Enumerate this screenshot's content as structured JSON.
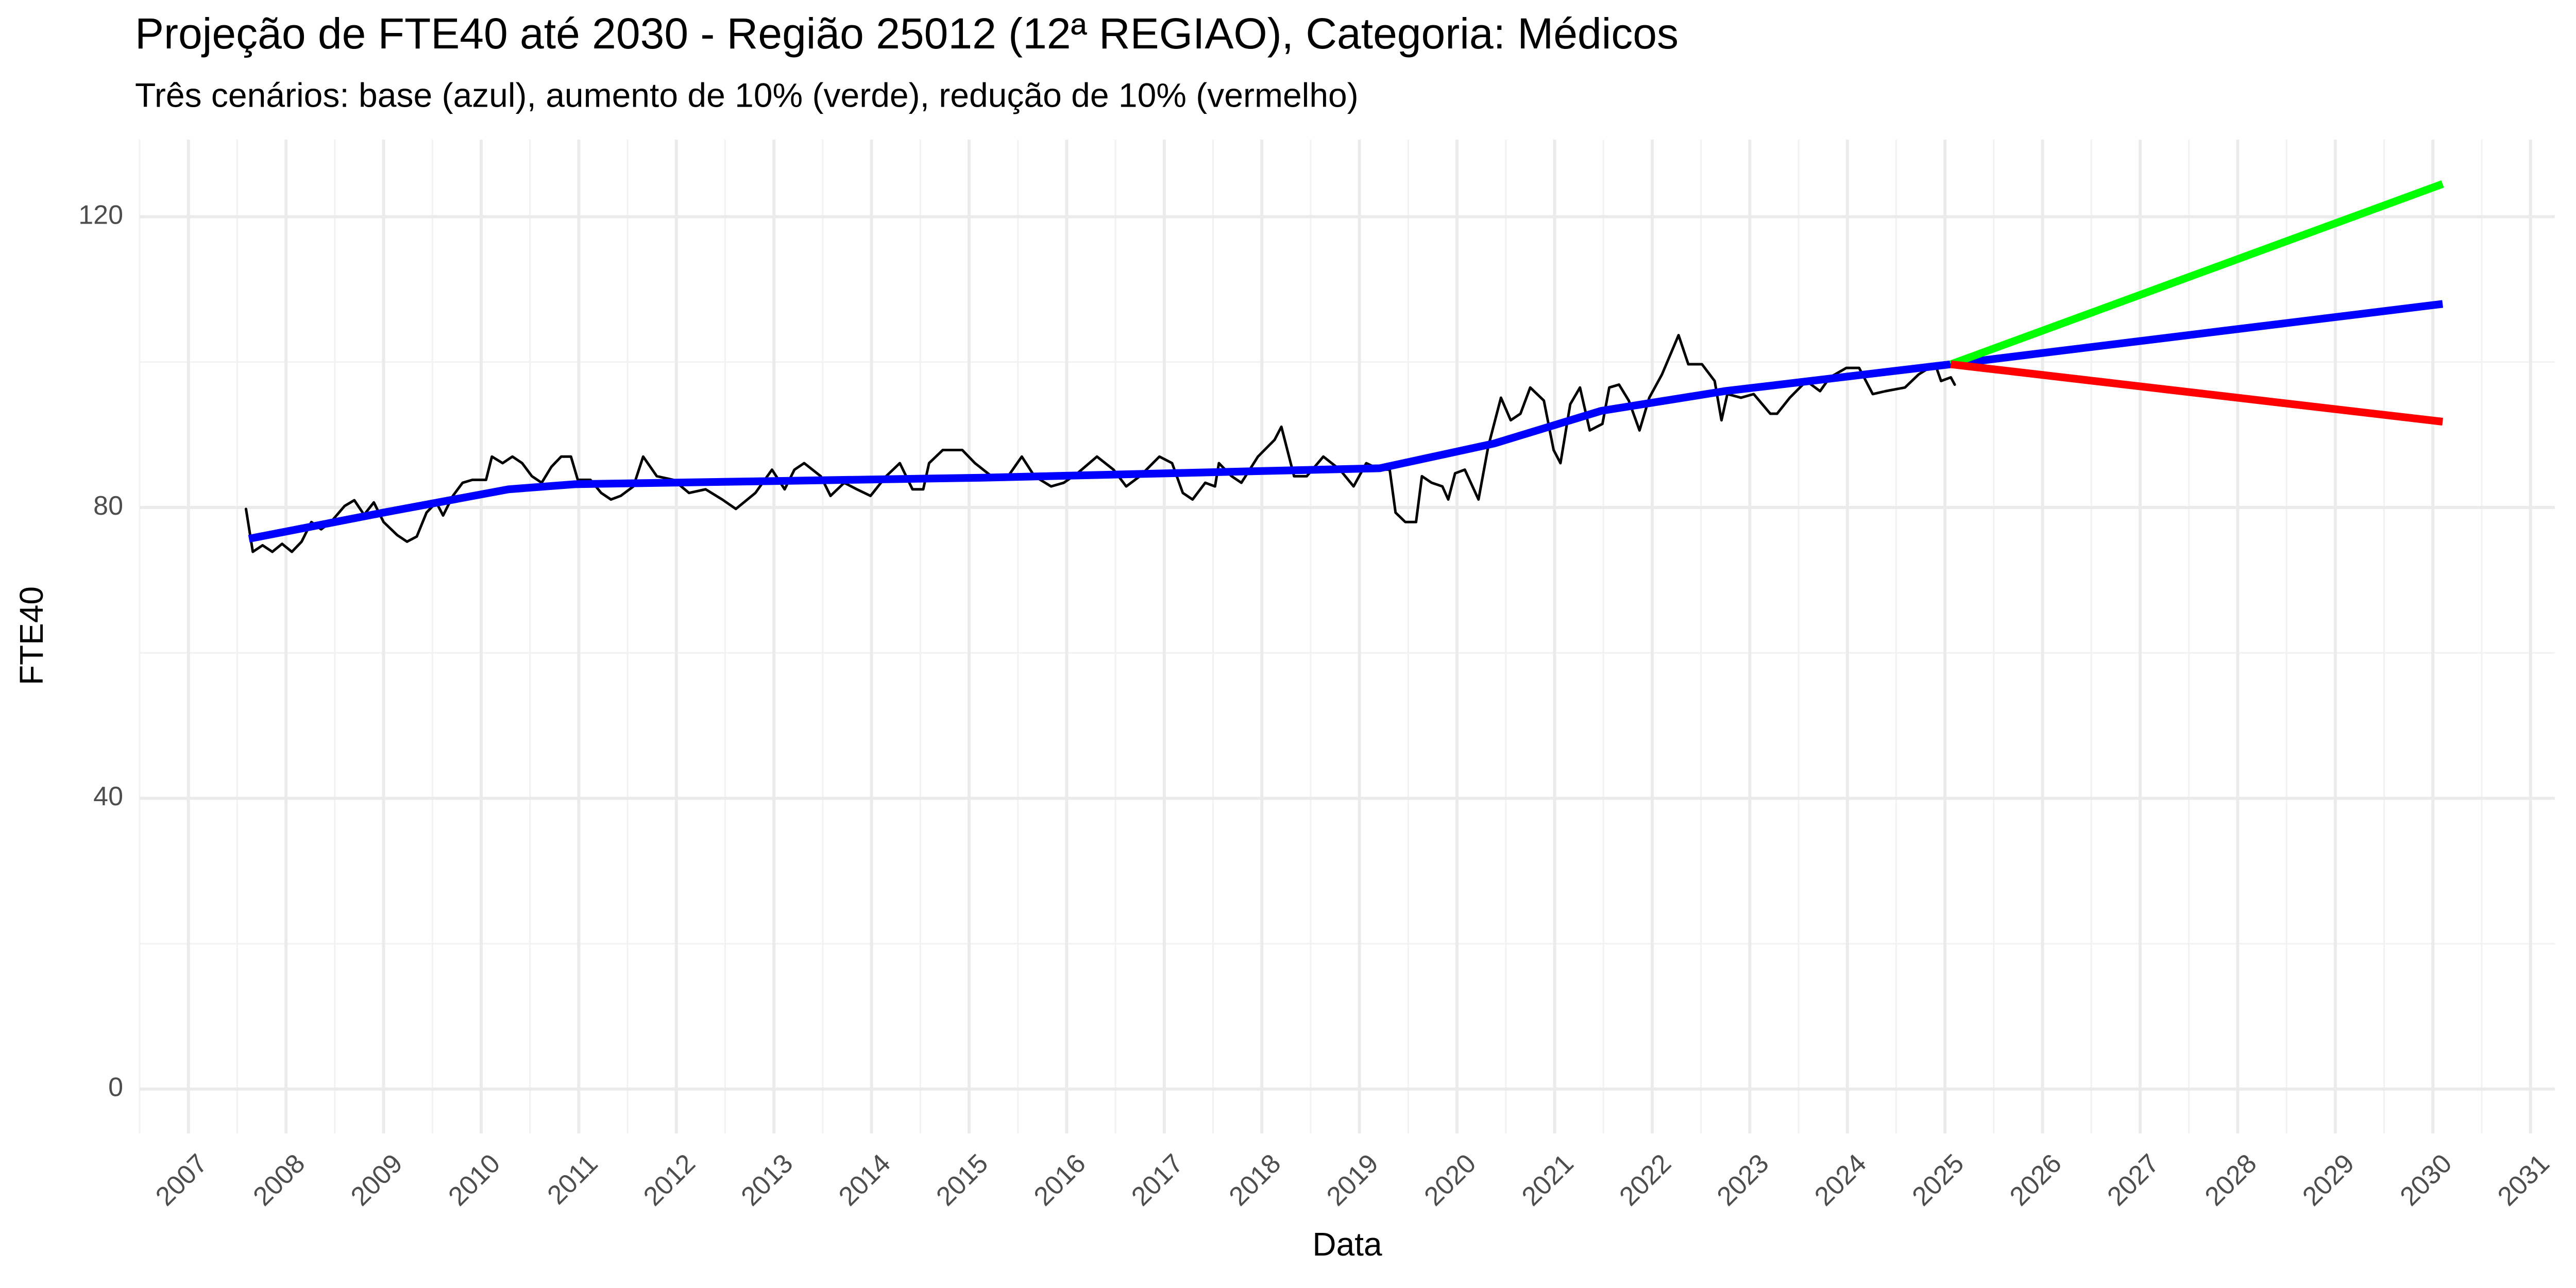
{
  "chart_data": {
    "type": "line",
    "title": "Projeção de FTE40 até 2030 - Região 25012 (12ª REGIAO), Categoria: Médicos",
    "subtitle": "Três cenários: base (azul), aumento de 10% (verde), redução de 10% (vermelho)",
    "xlabel": "Data",
    "ylabel": "FTE40",
    "xlim": [
      2006.5,
      2031.25
    ],
    "xticks": [
      2007,
      2008,
      2009,
      2010,
      2011,
      2012,
      2013,
      2014,
      2015,
      2016,
      2017,
      2018,
      2019,
      2020,
      2021,
      2022,
      2023,
      2024,
      2025,
      2026,
      2027,
      2028,
      2029,
      2030,
      2031
    ],
    "xminorticks": [
      2006.5,
      2007.5,
      2008.5,
      2009.5,
      2010.5,
      2011.5,
      2012.5,
      2013.5,
      2014.5,
      2015.5,
      2016.5,
      2017.5,
      2018.5,
      2019.5,
      2020.5,
      2021.5,
      2022.5,
      2023.5,
      2024.5,
      2025.5,
      2026.5,
      2027.5,
      2028.5,
      2029.5,
      2030.5
    ],
    "ylim": [
      -6.1,
      130.6
    ],
    "yticks": [
      0,
      40,
      80,
      120
    ],
    "yminorticks": [
      20,
      60,
      100
    ],
    "grid": true,
    "series": [
      {
        "color": "#000000",
        "x": [
          2007.59,
          2007.66,
          2007.76,
          2007.86,
          2007.96,
          2008.06,
          2008.16,
          2008.26,
          2008.36,
          2008.46,
          2008.6,
          2008.7,
          2008.8,
          2008.9,
          2009.0,
          2009.14,
          2009.24,
          2009.34,
          2009.44,
          2009.54,
          2009.61,
          2009.71,
          2009.81,
          2009.91,
          2010.05,
          2010.11,
          2010.22,
          2010.32,
          2010.42,
          2010.52,
          2010.62,
          2010.72,
          2010.82,
          2010.92,
          2010.99,
          2011.12,
          2011.23,
          2011.33,
          2011.43,
          2011.56,
          2011.66,
          2011.8,
          2011.97,
          2012.13,
          2012.3,
          2012.47,
          2012.61,
          2012.81,
          2012.98,
          2013.11,
          2013.21,
          2013.31,
          2013.48,
          2013.58,
          2013.72,
          2013.85,
          2013.99,
          2014.15,
          2014.29,
          2014.42,
          2014.53,
          2014.59,
          2014.73,
          2014.93,
          2015.06,
          2015.23,
          2015.4,
          2015.54,
          2015.67,
          2015.84,
          2015.97,
          2016.11,
          2016.31,
          2016.48,
          2016.61,
          2016.75,
          2016.95,
          2017.08,
          2017.19,
          2017.29,
          2017.42,
          2017.52,
          2017.56,
          2017.69,
          2017.79,
          2017.96,
          2018.13,
          2018.2,
          2018.33,
          2018.46,
          2018.63,
          2018.8,
          2018.94,
          2019.07,
          2019.21,
          2019.31,
          2019.37,
          2019.47,
          2019.58,
          2019.64,
          2019.74,
          2019.85,
          2019.91,
          2019.98,
          2020.08,
          2020.22,
          2020.32,
          2020.45,
          2020.55,
          2020.65,
          2020.75,
          2020.89,
          2020.99,
          2021.06,
          2021.16,
          2021.26,
          2021.36,
          2021.49,
          2021.56,
          2021.66,
          2021.76,
          2021.87,
          2021.97,
          2022.1,
          2022.27,
          2022.37,
          2022.51,
          2022.64,
          2022.71,
          2022.77,
          2022.91,
          2023.04,
          2023.21,
          2023.28,
          2023.41,
          2023.58,
          2023.72,
          2023.82,
          2023.99,
          2024.12,
          2024.26,
          2024.39,
          2024.59,
          2024.73,
          2024.9,
          2024.96,
          2025.06,
          2025.1
        ],
        "values": [
          79.8,
          73.9,
          74.8,
          73.9,
          75.0,
          73.9,
          75.3,
          78.0,
          77.0,
          78.0,
          80.2,
          81.0,
          79.0,
          80.7,
          78.0,
          76.2,
          75.3,
          76.0,
          79.3,
          80.7,
          78.9,
          81.6,
          83.4,
          83.8,
          83.8,
          87.0,
          86.1,
          87.0,
          86.1,
          84.3,
          83.4,
          85.6,
          87.0,
          87.0,
          83.8,
          83.8,
          82.0,
          81.1,
          81.6,
          82.9,
          87.0,
          84.3,
          83.8,
          82.0,
          82.5,
          81.1,
          79.8,
          82.0,
          85.2,
          82.5,
          85.2,
          86.1,
          84.3,
          81.6,
          83.4,
          82.5,
          81.6,
          84.3,
          86.1,
          82.5,
          82.5,
          86.1,
          87.9,
          87.9,
          86.1,
          84.3,
          84.3,
          87.0,
          84.3,
          82.9,
          83.4,
          84.7,
          87.0,
          85.2,
          82.9,
          84.3,
          87.0,
          86.1,
          82.0,
          81.1,
          83.4,
          82.9,
          86.1,
          84.3,
          83.4,
          87.0,
          89.3,
          91.1,
          84.3,
          84.3,
          87.0,
          85.2,
          82.9,
          86.1,
          85.2,
          85.2,
          79.3,
          78.0,
          78.0,
          84.3,
          83.4,
          82.9,
          81.1,
          84.7,
          85.2,
          81.1,
          88.4,
          95.1,
          92.0,
          92.9,
          96.5,
          94.7,
          87.9,
          86.1,
          94.2,
          96.5,
          90.6,
          91.5,
          96.5,
          96.9,
          94.7,
          90.6,
          95.1,
          98.3,
          103.7,
          99.7,
          99.7,
          97.4,
          92.0,
          95.6,
          95.1,
          95.6,
          92.9,
          92.9,
          95.1,
          97.4,
          96.0,
          97.9,
          99.2,
          99.2,
          95.6,
          96.0,
          96.5,
          98.3,
          99.7,
          97.4,
          97.9,
          96.9
        ]
      },
      {
        "color": "#0000ff",
        "x": [
          2007.62,
          2009.0,
          2010.28,
          2010.96,
          2015.16,
          2019.21,
          2020.38,
          2021.48,
          2022.74,
          2025.06,
          2030.1
        ],
        "values": [
          75.7,
          79.3,
          82.5,
          83.2,
          84.1,
          85.4,
          88.8,
          93.3,
          96.0,
          99.7,
          108.0
        ]
      },
      {
        "color": "#00ff00",
        "x": [
          2025.06,
          2030.1
        ],
        "values": [
          99.7,
          124.5
        ]
      },
      {
        "color": "#ff0000",
        "x": [
          2025.06,
          2030.1
        ],
        "values": [
          99.7,
          91.8
        ]
      }
    ]
  }
}
